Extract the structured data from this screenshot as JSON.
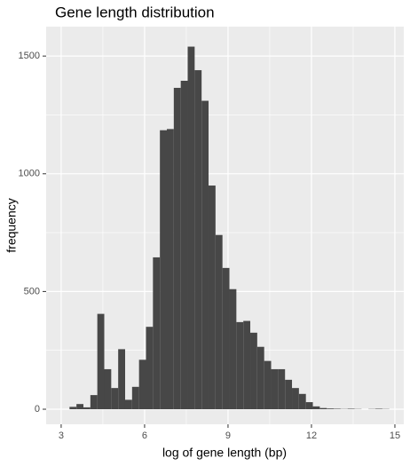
{
  "chart_data": {
    "type": "histogram",
    "title": "Gene length distribution",
    "x_label": "log of gene length (bp)",
    "y_label": "frequency",
    "bins": [
      3.3,
      3.55,
      3.8,
      4.05,
      4.3,
      4.55,
      4.8,
      5.05,
      5.3,
      5.55,
      5.8,
      6.05,
      6.3,
      6.55,
      6.8,
      7.05,
      7.3,
      7.55,
      7.8,
      8.05,
      8.3,
      8.55,
      8.8,
      9.05,
      9.3,
      9.55,
      9.8,
      10.05,
      10.3,
      10.55,
      10.8,
      11.05,
      11.3,
      11.55,
      11.8,
      12.05,
      12.3,
      12.55,
      12.8,
      13.05,
      13.3,
      13.55,
      13.8,
      14.05,
      14.3,
      14.55,
      14.8
    ],
    "values": [
      10,
      22,
      8,
      60,
      405,
      170,
      90,
      255,
      40,
      95,
      210,
      350,
      645,
      1185,
      1190,
      1365,
      1395,
      1540,
      1440,
      1310,
      950,
      740,
      600,
      510,
      370,
      375,
      325,
      265,
      205,
      170,
      170,
      125,
      90,
      65,
      30,
      12,
      5,
      3,
      2,
      1,
      2,
      1,
      0,
      1,
      2,
      1
    ],
    "color": "#474747",
    "xlim": [
      2.46,
      15.32
    ],
    "xticks": [
      3,
      6,
      9,
      12,
      15
    ],
    "ylim": [
      -64,
      1625
    ],
    "yticks": [
      0,
      500,
      1000,
      1500
    ],
    "grid": true
  }
}
